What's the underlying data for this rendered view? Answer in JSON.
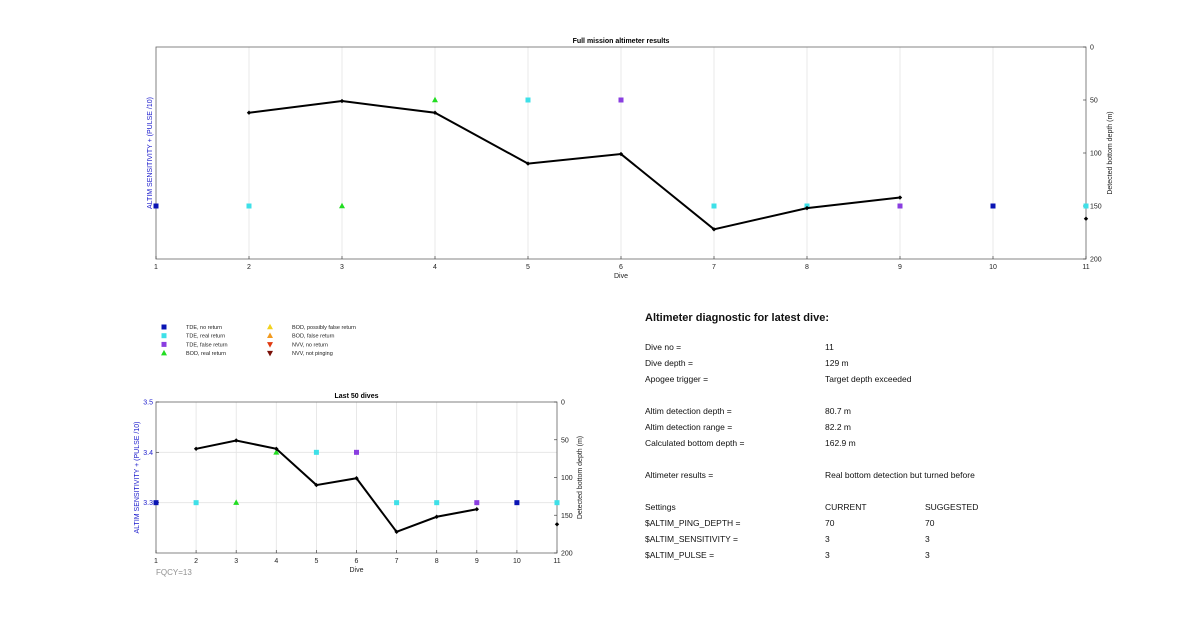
{
  "chart_data": [
    {
      "type": "line",
      "title": "Full mission altimeter results",
      "xlabel": "Dive",
      "ylabel_left": "ALTIM SENSITIVITY + (PULSE /10)",
      "ylabel_right": "Detected bottom depth (m)",
      "xlim": [
        1,
        11
      ],
      "ylim_right": [
        0,
        200
      ],
      "right_axis_reversed": true,
      "xticks": [
        "1",
        "2",
        "3",
        "4",
        "5",
        "6",
        "7",
        "8",
        "9",
        "10",
        "11"
      ],
      "yticks_right": [
        "0",
        "50",
        "100",
        "150",
        "200"
      ],
      "grid": "vertical",
      "series": [
        {
          "name": "Detected bottom depth",
          "kind": "line",
          "color": "#000000",
          "x": [
            2,
            3,
            4,
            5,
            6,
            7,
            8,
            9
          ],
          "y": [
            62,
            51,
            62,
            110,
            101,
            172,
            152,
            142
          ]
        },
        {
          "name": "Latest dive",
          "kind": "point",
          "color": "#000000",
          "x": [
            11
          ],
          "y": [
            162
          ]
        }
      ],
      "markers": [
        {
          "x": 1,
          "y": 150,
          "type": "tde_no_return"
        },
        {
          "x": 2,
          "y": 150,
          "type": "tde_real_return"
        },
        {
          "x": 3,
          "y": 150,
          "type": "bod_real_return"
        },
        {
          "x": 4,
          "y": 50,
          "type": "bod_real_return"
        },
        {
          "x": 5,
          "y": 50,
          "type": "tde_real_return"
        },
        {
          "x": 6,
          "y": 50,
          "type": "tde_false_return"
        },
        {
          "x": 7,
          "y": 150,
          "type": "tde_real_return"
        },
        {
          "x": 8,
          "y": 150,
          "type": "tde_real_return"
        },
        {
          "x": 9,
          "y": 150,
          "type": "tde_false_return"
        },
        {
          "x": 10,
          "y": 150,
          "type": "tde_no_return"
        },
        {
          "x": 11,
          "y": 150,
          "type": "tde_real_return"
        }
      ]
    },
    {
      "type": "line",
      "title": "Last 50 dives",
      "xlabel": "Dive",
      "ylabel_left": "ALTIM SENSITIVITY + (PULSE /10)",
      "ylabel_right": "Detected bottom depth (m)",
      "xlim": [
        1,
        11
      ],
      "ylim_left": [
        3.2,
        3.5
      ],
      "ylim_right": [
        0,
        200
      ],
      "right_axis_reversed": true,
      "xticks": [
        "1",
        "2",
        "3",
        "4",
        "5",
        "6",
        "7",
        "8",
        "9",
        "10",
        "11"
      ],
      "yticks_left": [
        "3.3",
        "3.4",
        "3.5"
      ],
      "yticks_right": [
        "0",
        "50",
        "100",
        "150",
        "200"
      ],
      "grid": "both",
      "series": [
        {
          "name": "Detected bottom depth",
          "kind": "line",
          "color": "#000000",
          "x": [
            2,
            3,
            4,
            5,
            6,
            7,
            8,
            9
          ],
          "y": [
            62,
            51,
            62,
            110,
            101,
            172,
            152,
            142
          ]
        },
        {
          "name": "Latest dive",
          "kind": "point",
          "color": "#000000",
          "x": [
            11
          ],
          "y": [
            162
          ]
        }
      ],
      "markers": [
        {
          "x": 1,
          "y": 3.3,
          "type": "tde_no_return"
        },
        {
          "x": 2,
          "y": 3.3,
          "type": "tde_real_return"
        },
        {
          "x": 3,
          "y": 3.3,
          "type": "bod_real_return"
        },
        {
          "x": 4,
          "y": 3.4,
          "type": "bod_real_return"
        },
        {
          "x": 5,
          "y": 3.4,
          "type": "tde_real_return"
        },
        {
          "x": 6,
          "y": 3.4,
          "type": "tde_false_return"
        },
        {
          "x": 7,
          "y": 3.3,
          "type": "tde_real_return"
        },
        {
          "x": 8,
          "y": 3.3,
          "type": "tde_real_return"
        },
        {
          "x": 9,
          "y": 3.3,
          "type": "tde_false_return"
        },
        {
          "x": 10,
          "y": 3.3,
          "type": "tde_no_return"
        },
        {
          "x": 11,
          "y": 3.3,
          "type": "tde_real_return"
        }
      ]
    }
  ],
  "marker_styles": {
    "tde_no_return": {
      "shape": "square",
      "color": "#0a14b4"
    },
    "tde_real_return": {
      "shape": "square",
      "color": "#3ee0e8"
    },
    "tde_false_return": {
      "shape": "square",
      "color": "#8a3ee0"
    },
    "bod_real_return": {
      "shape": "triangle-up",
      "color": "#22dd22"
    },
    "bod_possibly_false": {
      "shape": "triangle-up",
      "color": "#f2d21e"
    },
    "bod_false_return": {
      "shape": "triangle-up",
      "color": "#f29a1e"
    },
    "nvv_no_return": {
      "shape": "triangle-down",
      "color": "#e03a10"
    },
    "nvv_not_pinging": {
      "shape": "triangle-down",
      "color": "#7a1008"
    }
  },
  "legend": [
    {
      "key": "tde_no_return",
      "label": "TDE, no return"
    },
    {
      "key": "tde_real_return",
      "label": "TDE, real return"
    },
    {
      "key": "tde_false_return",
      "label": "TDE, false return"
    },
    {
      "key": "bod_real_return",
      "label": "BOD, real return"
    },
    {
      "key": "bod_possibly_false",
      "label": "BOD, possibly false return"
    },
    {
      "key": "bod_false_return",
      "label": "BOD, false return"
    },
    {
      "key": "nvv_no_return",
      "label": "NVV, no return"
    },
    {
      "key": "nvv_not_pinging",
      "label": "NVV, not pinging"
    }
  ],
  "fqcy": "FQCY=13",
  "diagnostic": {
    "heading": "Altimeter diagnostic for latest dive:",
    "dive_no_label": "Dive no =",
    "dive_no": "11",
    "dive_depth_label": "Dive depth =",
    "dive_depth": "129 m",
    "apogee_label": "Apogee trigger =",
    "apogee": "Target depth exceeded",
    "det_depth_label": "Altim detection depth =",
    "det_depth": "80.7 m",
    "det_range_label": "Altim detection range =",
    "det_range": "82.2 m",
    "calc_depth_label": "Calculated bottom depth =",
    "calc_depth": "162.9 m",
    "results_label": "Altimeter results =",
    "results": "Real bottom detection but turned before",
    "settings_label": "Settings",
    "current_label": "CURRENT",
    "suggested_label": "SUGGESTED",
    "ping_label": "$ALTIM_PING_DEPTH =",
    "ping_current": "70",
    "ping_suggested": "70",
    "sens_label": "$ALTIM_SENSITIVITY =",
    "sens_current": "3",
    "sens_suggested": "3",
    "pulse_label": "$ALTIM_PULSE =",
    "pulse_current": "3",
    "pulse_suggested": "3"
  }
}
